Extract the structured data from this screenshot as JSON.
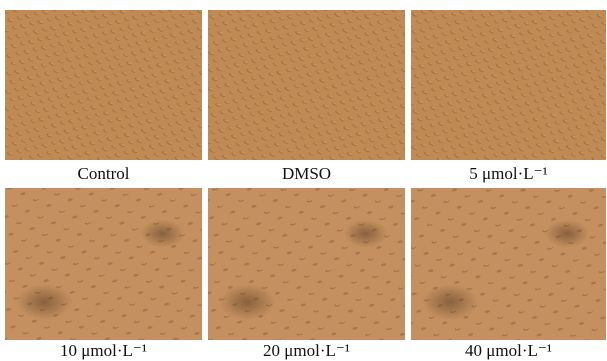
{
  "panels": [
    {
      "label": "Control"
    },
    {
      "label": "DMSO"
    },
    {
      "label": "5 μmol·L⁻¹"
    },
    {
      "label": "10 μmol·L⁻¹"
    },
    {
      "label": "20 μmol·L⁻¹"
    },
    {
      "label": "40 μmol·L⁻¹"
    }
  ]
}
